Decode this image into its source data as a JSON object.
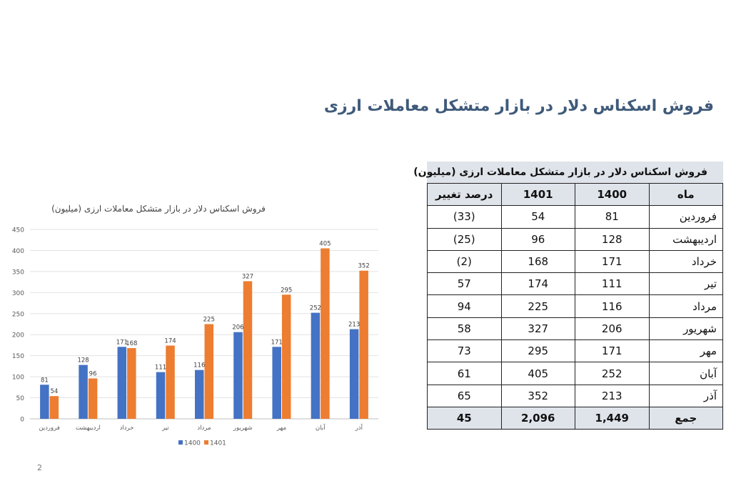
{
  "page": {
    "title": "فروش اسکناس دلار در بازار متشکل معاملات ارزی",
    "page_number": "2"
  },
  "table": {
    "caption": "فروش اسکناس دلار در بازار متشکل معاملات ارزی (میلیون)",
    "headers": [
      "ماه",
      "1400",
      "1401",
      "درصد تغییر"
    ],
    "rows": [
      [
        "فروردین",
        "81",
        "54",
        "(33)"
      ],
      [
        "اردیبهشت",
        "128",
        "96",
        "(25)"
      ],
      [
        "خرداد",
        "171",
        "168",
        "(2)"
      ],
      [
        "تیر",
        "111",
        "174",
        "57"
      ],
      [
        "مرداد",
        "116",
        "225",
        "94"
      ],
      [
        "شهریور",
        "206",
        "327",
        "58"
      ],
      [
        "مهر",
        "171",
        "295",
        "73"
      ],
      [
        "آبان",
        "252",
        "405",
        "61"
      ],
      [
        "آذر",
        "213",
        "352",
        "65"
      ]
    ],
    "total": [
      "جمع",
      "1,449",
      "2,096",
      "45"
    ]
  },
  "chart_data": {
    "type": "bar",
    "title": "فروش اسکناس دلار در بازار متشکل معاملات ارزی (میلیون)",
    "categories": [
      "فروردین",
      "اردیبهشت",
      "خرداد",
      "تیر",
      "مرداد",
      "شهریور",
      "مهر",
      "آبان",
      "آذر"
    ],
    "series": [
      {
        "name": "1400",
        "color": "#4472c4",
        "values": [
          81,
          128,
          171,
          111,
          116,
          206,
          171,
          252,
          213
        ]
      },
      {
        "name": "1401",
        "color": "#ed7d31",
        "values": [
          54,
          96,
          168,
          174,
          225,
          327,
          295,
          405,
          352
        ]
      }
    ],
    "ylim": [
      0,
      450
    ],
    "yticks": [
      0,
      50,
      100,
      150,
      200,
      250,
      300,
      350,
      400,
      450
    ],
    "grid": true,
    "legend": "bottom",
    "data_labels": true
  }
}
